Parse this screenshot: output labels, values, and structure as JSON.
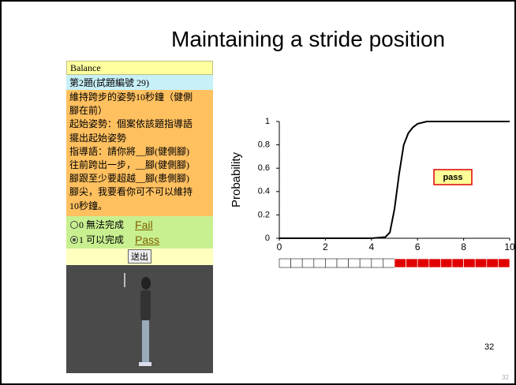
{
  "slide": {
    "title": "Maintaining a stride position",
    "page_number": "32",
    "page_number_small": "32"
  },
  "panel": {
    "header": "Balance",
    "item": "第2題(試題編號 29)",
    "instructions": [
      "維持跨步的姿勢10秒鐘（健側",
      "腳在前）",
      "起始姿勢：個案依該題指導語",
      "擺出起始姿勢",
      "指導語：請你將__腳(健側腳)",
      "往前跨出一步，__腳(健側腳)",
      "腳跟至少要超越__腳(患側腳)",
      "腳尖，我要看你可不可以維持",
      "10秒鐘。"
    ],
    "options": [
      {
        "label": "0 無法完成",
        "translation": "Fail"
      },
      {
        "label": "1 可以完成",
        "translation": "Pass"
      }
    ],
    "button": "送出"
  },
  "chart_data": {
    "type": "line",
    "y_label": "Probability",
    "annotation": "pass",
    "x": [
      0,
      1,
      2,
      3,
      4,
      4.6,
      4.8,
      5,
      5.2,
      5.4,
      5.6,
      5.8,
      6,
      6.4,
      7,
      8,
      9,
      10
    ],
    "series": [
      {
        "color": "#000000",
        "values": [
          0,
          0,
          0,
          0,
          0,
          0.01,
          0.05,
          0.25,
          0.55,
          0.8,
          0.9,
          0.95,
          0.98,
          1,
          1,
          1,
          1,
          1
        ]
      }
    ],
    "xlim": [
      0,
      10
    ],
    "xticks": [
      0,
      2,
      4,
      6,
      8,
      10
    ],
    "ylim": [
      0,
      1
    ],
    "yticks": [
      0,
      0.2,
      0.4,
      0.6,
      0.8,
      1
    ]
  }
}
